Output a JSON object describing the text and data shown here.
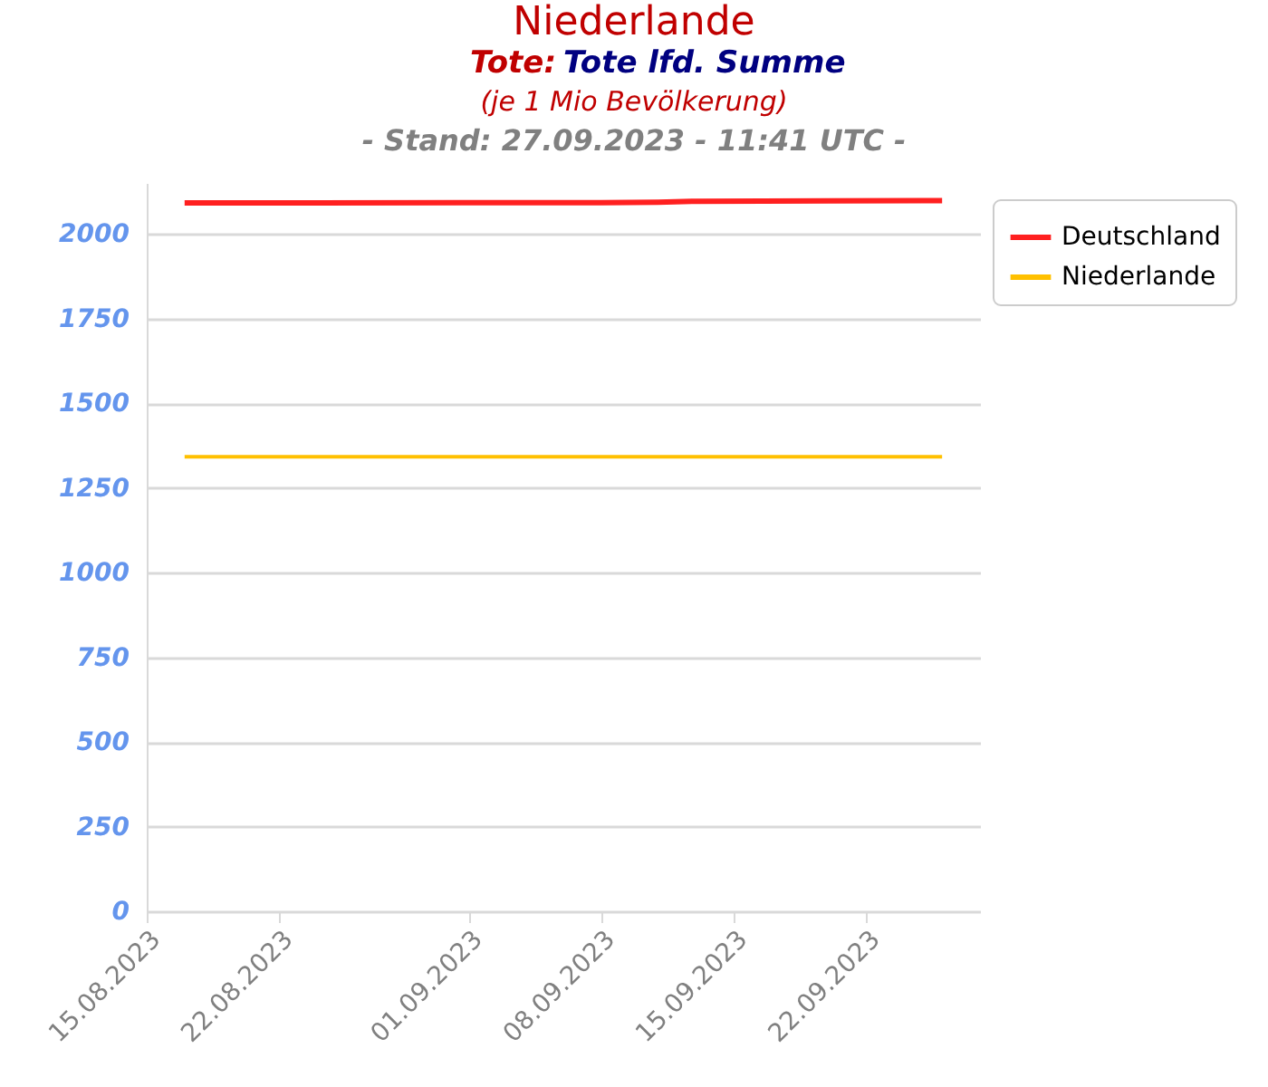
{
  "chart_data": {
    "type": "line",
    "title": "Niederlande",
    "subtitle": "Tote: Tote lfd. Summe",
    "annotations": [
      "(je 1 Mio Bevölkerung)",
      "- Stand: 27.09.2023 - 11:41 UTC -"
    ],
    "x": [
      "2023-08-17",
      "2023-08-24",
      "2023-09-01",
      "2023-09-08",
      "2023-09-11",
      "2023-09-13",
      "2023-09-20",
      "2023-09-26"
    ],
    "series": [
      {
        "name": "Deutschland",
        "color": "#ff2020",
        "values": [
          2091,
          2091,
          2092,
          2092,
          2093,
          2096,
          2097,
          2098
        ]
      },
      {
        "name": "Niederlande",
        "color": "#ffc000",
        "values": [
          1342,
          1342,
          1342,
          1342,
          1342,
          1342,
          1342,
          1342
        ]
      }
    ],
    "xlim": [
      "2023-08-15",
      "2023-09-28"
    ],
    "xticks": [
      {
        "value": "2023-08-15",
        "label": "15.08.2023"
      },
      {
        "value": "2023-08-22",
        "label": "22.08.2023"
      },
      {
        "value": "2023-09-01",
        "label": "01.09.2023"
      },
      {
        "value": "2023-09-08",
        "label": "08.09.2023"
      },
      {
        "value": "2023-09-15",
        "label": "15.09.2023"
      },
      {
        "value": "2023-09-22",
        "label": "22.09.2023"
      }
    ],
    "ylim": [
      0,
      2150
    ],
    "yticks": [
      0,
      250,
      500,
      750,
      1000,
      1250,
      1500,
      1750,
      2000
    ],
    "grid": "y",
    "legend": "top right"
  }
}
